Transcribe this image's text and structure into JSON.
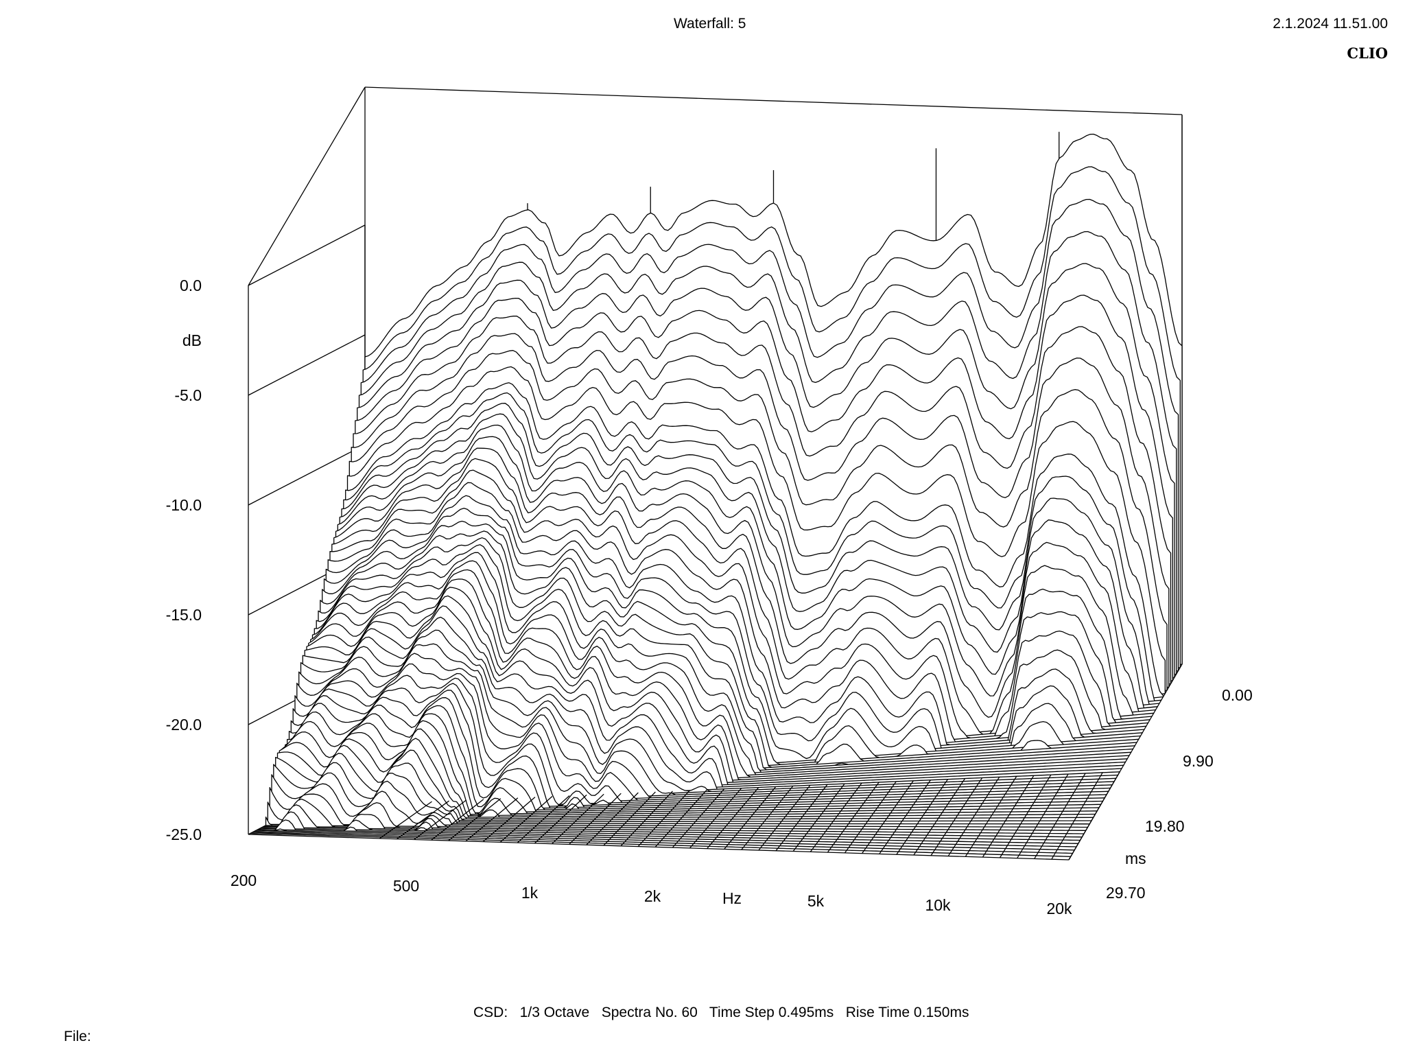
{
  "header": {
    "title": "Waterfall: 5",
    "timestamp": "2.1.2024 11.51.00",
    "brand": "CLIO"
  },
  "footer": {
    "settings": "CSD:   1/3 Octave   Spectra No. 60   Time Step 0.495ms   Rise Time 0.150ms",
    "file_label": "File:"
  },
  "chart_data": {
    "type": "waterfall",
    "title": "Waterfall: 5",
    "method": "CSD",
    "smoothing": "1/3 Octave",
    "spectra_count": 60,
    "time_step_ms": 0.495,
    "rise_time_ms": 0.15,
    "x_axis": {
      "label": "Hz",
      "scale": "log",
      "range": [
        200,
        20000
      ],
      "ticks": [
        {
          "value": 200,
          "label": "200"
        },
        {
          "value": 500,
          "label": "500"
        },
        {
          "value": 1000,
          "label": "1k"
        },
        {
          "value": 2000,
          "label": "2k"
        },
        {
          "value": 5000,
          "label": "5k"
        },
        {
          "value": 10000,
          "label": "10k"
        },
        {
          "value": 20000,
          "label": "20k"
        }
      ]
    },
    "y_axis": {
      "label": "dB",
      "range": [
        -25,
        0
      ],
      "ticks": [
        {
          "value": 0,
          "label": "0.0"
        },
        {
          "value": -5,
          "label": "-5.0"
        },
        {
          "value": -10,
          "label": "-10.0"
        },
        {
          "value": -15,
          "label": "-15.0"
        },
        {
          "value": -20,
          "label": "-20.0"
        },
        {
          "value": -25,
          "label": "-25.0"
        }
      ]
    },
    "z_axis": {
      "label": "ms",
      "range": [
        0,
        29.7
      ],
      "ticks": [
        {
          "value": 0,
          "label": "0.00"
        },
        {
          "value": 9.9,
          "label": "9.90"
        },
        {
          "value": 19.8,
          "label": "19.80"
        },
        {
          "value": 29.7,
          "label": "29.70"
        }
      ]
    },
    "first_spectrum_db": {
      "freq_hz": [
        200,
        250,
        300,
        350,
        400,
        450,
        500,
        550,
        600,
        700,
        800,
        900,
        1000,
        1100,
        1200,
        1400,
        1600,
        1800,
        2000,
        2300,
        2600,
        3000,
        3500,
        4000,
        5000,
        6000,
        7000,
        8000,
        9000,
        10000,
        11000,
        12000,
        13000,
        15000,
        17000,
        20000
      ],
      "level_db": [
        -6.0,
        -4.5,
        -3.2,
        -2.5,
        -1.5,
        -0.5,
        -0.3,
        -1.0,
        -2.6,
        -1.7,
        -1.0,
        -2.0,
        -1.2,
        -2.1,
        -1.4,
        -1.0,
        -1.3,
        -2.0,
        -1.5,
        -4.0,
        -6.5,
        -6.0,
        -4.5,
        -3.5,
        -4.2,
        -3.2,
        -6.0,
        -6.8,
        -5.0,
        -1.2,
        -0.5,
        -0.3,
        -0.6,
        -2.2,
        -5.5,
        -10.5
      ]
    },
    "decay_envelope": [
      {
        "time_ms": 0.0,
        "offset_db": 0
      },
      {
        "time_ms": 4.95,
        "offset_db": -5.5
      },
      {
        "time_ms": 9.9,
        "offset_db": -9.0
      },
      {
        "time_ms": 14.85,
        "offset_db": -12.0
      },
      {
        "time_ms": 19.8,
        "offset_db": -15.0
      },
      {
        "time_ms": 24.75,
        "offset_db": -18.0
      },
      {
        "time_ms": 29.7,
        "offset_db": -21.0
      }
    ],
    "grid": true,
    "legend": "none"
  }
}
